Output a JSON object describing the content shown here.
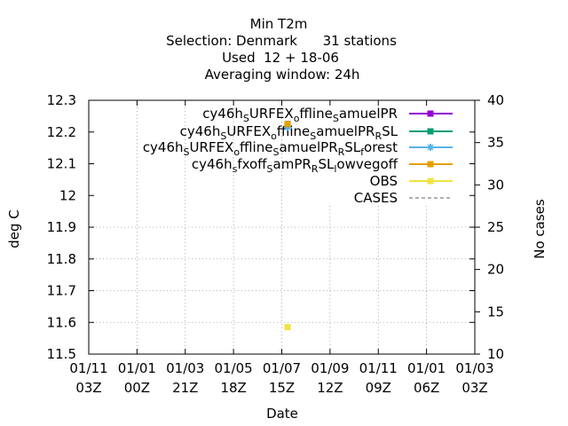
{
  "chart_data": {
    "type": "scatter",
    "title_lines": [
      "Min T2m",
      "Selection: Denmark      31 stations",
      "Used  12 + 18-06",
      "Averaging window: 24h"
    ],
    "xlabel": "Date",
    "ylabel": "deg C",
    "y2label": "No cases",
    "ylim": [
      11.5,
      12.3
    ],
    "y2lim": [
      10,
      40
    ],
    "yticks": [
      "11.5",
      "11.6",
      "11.7",
      "11.8",
      "11.9",
      "12",
      "12.1",
      "12.2",
      "12.3"
    ],
    "y2ticks": [
      "10",
      "15",
      "20",
      "25",
      "30",
      "35",
      "40"
    ],
    "xticks": [
      {
        "top": "01/11",
        "bottom": "03Z"
      },
      {
        "top": "01/01",
        "bottom": "00Z"
      },
      {
        "top": "01/03",
        "bottom": "21Z"
      },
      {
        "top": "01/05",
        "bottom": "18Z"
      },
      {
        "top": "01/07",
        "bottom": "15Z"
      },
      {
        "top": "01/09",
        "bottom": "12Z"
      },
      {
        "top": "01/11",
        "bottom": "09Z"
      },
      {
        "top": "01/01",
        "bottom": "06Z"
      },
      {
        "top": "01/03",
        "bottom": "03Z"
      }
    ],
    "grid": true,
    "legend_position": "top-right",
    "series": [
      {
        "name": [
          "cy46h",
          "S",
          "URFEX",
          "o",
          "ffline",
          "S",
          "amuelPR"
        ],
        "color": "#9400d3",
        "marker": "square",
        "x": 4.12,
        "y": 12.225
      },
      {
        "name": [
          "cy46h",
          "S",
          "URFEX",
          "o",
          "ffline",
          "S",
          "amuelPR",
          "R",
          "SL"
        ],
        "color": "#009e73",
        "marker": "square",
        "x": 4.12,
        "y": 12.225
      },
      {
        "name": [
          "cy46h",
          "S",
          "URFEX",
          "o",
          "ffline",
          "S",
          "amuelPR",
          "R",
          "SL",
          "f",
          "orest"
        ],
        "color": "#56b4e9",
        "marker": "star",
        "x": 4.12,
        "y": 12.215
      },
      {
        "name": [
          "cy46h",
          "s",
          "fxoff",
          "S",
          "amPR",
          "R",
          "SL",
          "l",
          "owvegoff"
        ],
        "color": "#e69f00",
        "marker": "square",
        "x": 4.12,
        "y": 12.225
      },
      {
        "name": [
          "OBS"
        ],
        "color": "#f0e442",
        "marker": "square",
        "x": 4.12,
        "y": 11.585
      },
      {
        "name": [
          "CASES"
        ],
        "color": "#808080",
        "marker": "dash-line"
      }
    ]
  }
}
